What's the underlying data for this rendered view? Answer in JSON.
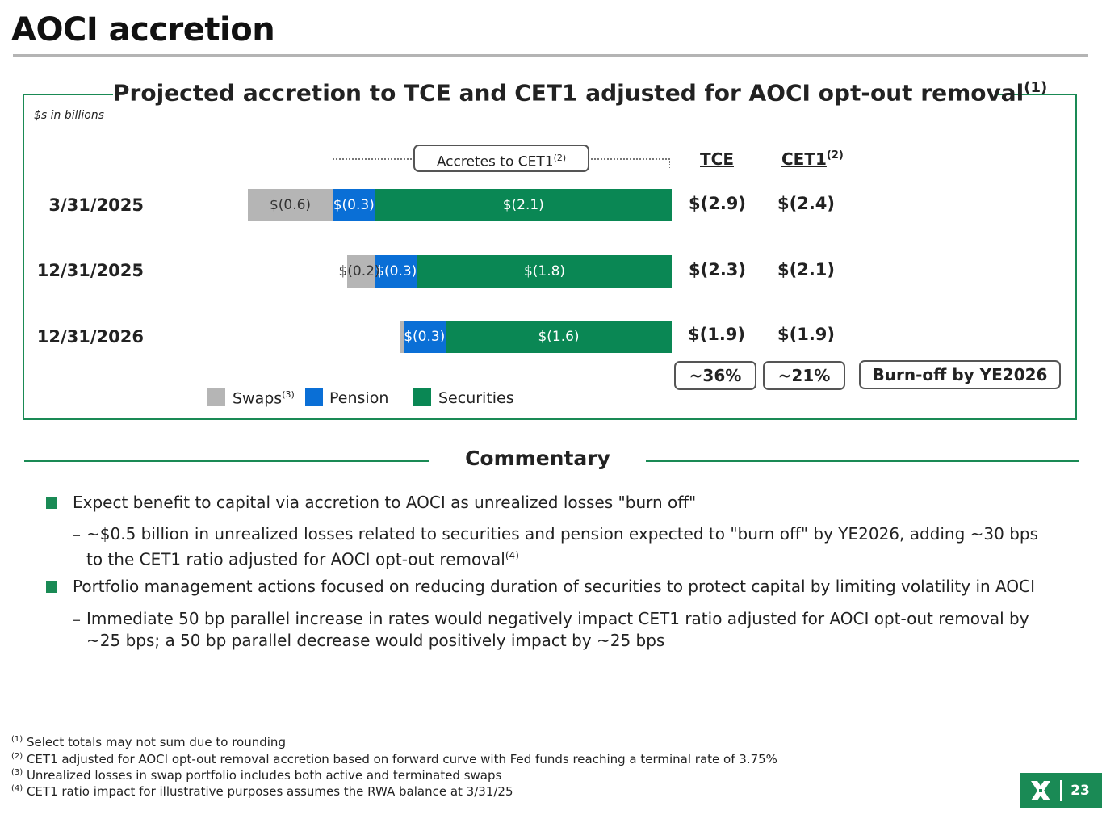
{
  "page": {
    "title": "AOCI accretion",
    "page_number": "23"
  },
  "chart_data": {
    "type": "bar",
    "orientation": "horizontal",
    "stacked": true,
    "title": "Projected accretion to TCE and CET1 adjusted for AOCI opt-out removal",
    "title_footnote": "(1)",
    "units_note": "$s in billions",
    "categories": [
      "3/31/2025",
      "12/31/2025",
      "12/31/2026"
    ],
    "series": [
      {
        "name": "Swaps",
        "footnote": "(3)",
        "color": "#b5b5b5",
        "values": [
          -0.6,
          -0.2,
          -0.02
        ],
        "labels": [
          "$(0.6)",
          "$(0.2)",
          ""
        ]
      },
      {
        "name": "Pension",
        "footnote": "",
        "color": "#0a6fd6",
        "values": [
          -0.3,
          -0.3,
          -0.3
        ],
        "labels": [
          "$(0.3)",
          "$(0.3)",
          "$(0.3)"
        ]
      },
      {
        "name": "Securities",
        "footnote": "",
        "color": "#0a8754",
        "values": [
          -2.1,
          -1.8,
          -1.6
        ],
        "labels": [
          "$(2.1)",
          "$(1.8)",
          "$(1.6)"
        ]
      }
    ],
    "bracket_label": "Accretes to CET1",
    "bracket_footnote": "(2)",
    "columns": {
      "tce_header": "TCE",
      "cet1_header": "CET1",
      "cet1_footnote": "(2)",
      "tce_values": [
        "$(2.9)",
        "$(2.3)",
        "$(1.9)"
      ],
      "cet1_values": [
        "$(2.4)",
        "$(2.1)",
        "$(1.9)"
      ]
    },
    "summary_pills": {
      "tce_change": "~36%",
      "cet1_change": "~21%",
      "burn_off": "Burn-off by YE2026"
    },
    "legend_position": "bottom-left",
    "grid": false
  },
  "commentary": {
    "title": "Commentary",
    "bullet1": "Expect benefit to capital via accretion to AOCI as unrealized losses \"burn off\"",
    "sub1_line1": "~$0.5 billion in unrealized losses related to securities and pension expected to \"burn off\" by YE2026, adding ~30 bps",
    "sub1_line2": "to the CET1 ratio adjusted for AOCI opt-out removal",
    "sub1_footnote": "(4)",
    "bullet2": "Portfolio management actions focused on reducing duration of securities to protect capital by limiting volatility in AOCI",
    "sub2_line1": "Immediate 50 bp parallel increase in rates would negatively impact CET1 ratio adjusted for AOCI opt-out removal by",
    "sub2_line2": "~25 bps; a 50 bp parallel decrease would positively impact by ~25 bps",
    "dash": "–"
  },
  "footnotes": [
    {
      "mark": "(1)",
      "text": "Select totals may not sum due to rounding"
    },
    {
      "mark": "(2)",
      "text": "CET1 adjusted for AOCI opt-out removal accretion based on forward curve with Fed funds reaching a terminal rate of 3.75%"
    },
    {
      "mark": "(3)",
      "text": "Unrealized losses in swap portfolio includes both active and terminated swaps"
    },
    {
      "mark": "(4)",
      "text": "CET1 ratio impact for illustrative purposes assumes the RWA balance at 3/31/25"
    }
  ],
  "colors": {
    "brand_green": "#1a8a55",
    "swaps": "#b5b5b5",
    "pension": "#0a6fd6",
    "securities": "#0a8754"
  },
  "icons": {
    "logo": "company-logo-icon"
  }
}
